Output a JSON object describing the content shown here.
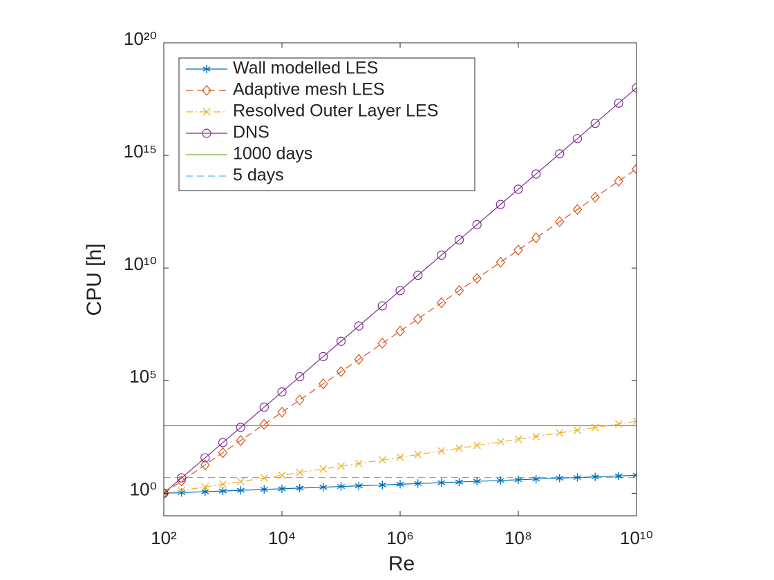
{
  "chart_data": {
    "type": "line",
    "x_label": "Re",
    "y_label": "CPU [h]",
    "log_x": true,
    "log_y": true,
    "xlim": [
      100,
      10000000000
    ],
    "ylim": [
      0.1,
      1e+20
    ],
    "xticks": [
      {
        "value": 100,
        "label": "10²"
      },
      {
        "value": 10000,
        "label": "10⁴"
      },
      {
        "value": 1000000,
        "label": "10⁶"
      },
      {
        "value": 100000000,
        "label": "10⁸"
      },
      {
        "value": 10000000000,
        "label": "10¹⁰"
      }
    ],
    "yticks": [
      {
        "value": 1,
        "label": "10⁰"
      },
      {
        "value": 100000,
        "label": "10⁵"
      },
      {
        "value": 10000000000,
        "label": "10¹⁰"
      },
      {
        "value": 1000000000000000.0,
        "label": "10¹⁵"
      },
      {
        "value": 1e+20,
        "label": "10²⁰"
      }
    ],
    "legend": "upper left",
    "x": [
      100,
      200,
      500,
      1000,
      2000,
      5000,
      10000,
      20000,
      50000,
      100000,
      200000,
      500000,
      1000000,
      2000000,
      5000000,
      10000000,
      20000000,
      50000000,
      100000000,
      200000000,
      500000000,
      1000000000,
      2000000000,
      5000000000,
      10000000000
    ],
    "series": [
      {
        "name": "Wall modelled LES",
        "color": "#0072BD",
        "dash": "solid",
        "marker": "asterisk",
        "values": [
          1,
          1.07,
          1.17,
          1.26,
          1.35,
          1.48,
          1.58,
          1.7,
          1.86,
          2.0,
          2.14,
          2.34,
          2.51,
          2.7,
          2.95,
          3.16,
          3.39,
          3.71,
          3.98,
          4.27,
          4.67,
          5.01,
          5.37,
          5.88,
          6.31
        ]
      },
      {
        "name": "Adaptive mesh LES",
        "color": "#D95319",
        "dash": "dashed",
        "marker": "diamond",
        "values": [
          1,
          3.48,
          18.1,
          63.1,
          220,
          1143,
          3980,
          13900,
          72100,
          251000,
          875000,
          4550000,
          15800000,
          55200000,
          287000000,
          1000000000,
          3480000000,
          18100000000,
          63100000000,
          220000000000,
          1140000000000,
          3980000000000,
          13900000000000,
          72100000000000,
          251000000000000
        ]
      },
      {
        "name": "Resolved Outer Layer LES",
        "color": "#EDB120",
        "dash": "dashdot",
        "marker": "x",
        "values": [
          1,
          1.32,
          1.9,
          2.51,
          3.31,
          4.79,
          6.31,
          8.32,
          12.0,
          15.8,
          20.9,
          30.2,
          39.8,
          52.5,
          75.9,
          100,
          132,
          191,
          251,
          331,
          479,
          631,
          832,
          1200,
          1580
        ]
      },
      {
        "name": "DNS",
        "color": "#7E2F8E",
        "dash": "solid",
        "marker": "circle",
        "values": [
          1,
          4.8,
          37.4,
          178,
          846,
          6650,
          31600,
          150000,
          1180000,
          5600000,
          26700000,
          210000000,
          1000000000,
          4750000000,
          37400000000,
          178000000000,
          846000000000,
          6650000000000,
          31600000000000,
          150000000000000,
          1180000000000000,
          5600000000000000,
          26700000000000000,
          210000000000000000,
          1000000000000000000
        ]
      }
    ],
    "hlines": [
      {
        "name": "1000 days",
        "color": "#77AC30",
        "dash": "solid",
        "value": 1000
      },
      {
        "name": "5 days",
        "color": "#4DBEEE",
        "dash": "dashed",
        "value": 5
      }
    ]
  }
}
